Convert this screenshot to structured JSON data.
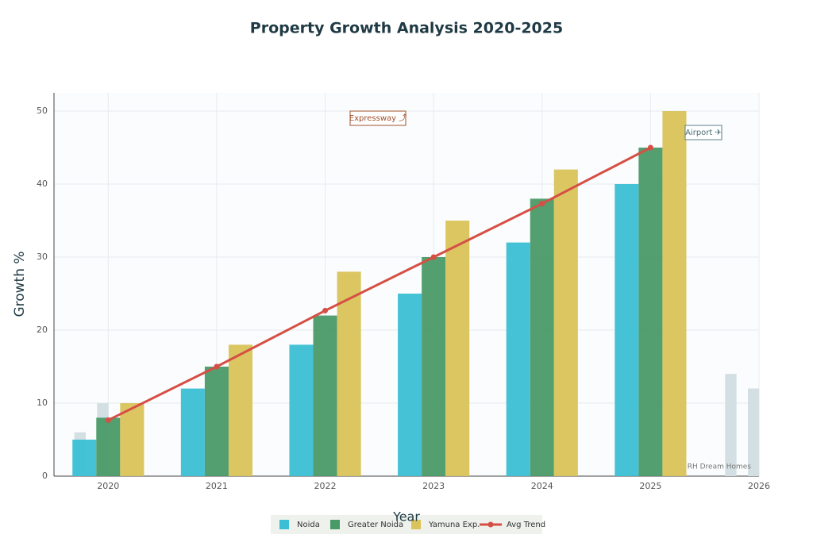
{
  "chart_data": {
    "type": "bar",
    "title": "Property Growth Analysis 2020-2025",
    "x_label": "Year",
    "y_label": "Growth %",
    "x": [
      2020,
      2021,
      2022,
      2023,
      2024,
      2025
    ],
    "xlim": [
      2019.5,
      2026
    ],
    "xticks": [
      2020,
      2021,
      2022,
      2023,
      2024,
      2025,
      2026
    ],
    "ylim": [
      0,
      52.5
    ],
    "yticks": [
      0,
      10,
      20,
      30,
      40,
      50
    ],
    "grid": true,
    "series": [
      {
        "name": "Noida",
        "type": "bar",
        "color": "#3bbfd4",
        "values": [
          5,
          12,
          18,
          25,
          32,
          40
        ]
      },
      {
        "name": "Greater Noida",
        "type": "bar",
        "color": "#4a9a67",
        "values": [
          8,
          15,
          22,
          30,
          38,
          45
        ]
      },
      {
        "name": "Yamuna Exp.",
        "type": "bar",
        "color": "#d9c35a",
        "values": [
          10,
          18,
          28,
          35,
          42,
          50
        ]
      },
      {
        "name": "Avg Trend",
        "type": "line",
        "color": "#d64f45",
        "values": [
          7.67,
          15,
          22.67,
          30,
          37.33,
          45
        ]
      }
    ],
    "background_bars": {
      "color": "#d3dfe2",
      "x": [
        2019.74,
        2019.95,
        2025.74,
        2025.95
      ],
      "values": [
        6,
        10,
        14,
        12
      ]
    },
    "annotations": [
      "Expressway ⤴",
      "Airport ✈"
    ],
    "watermark": "RH Dream Homes"
  }
}
